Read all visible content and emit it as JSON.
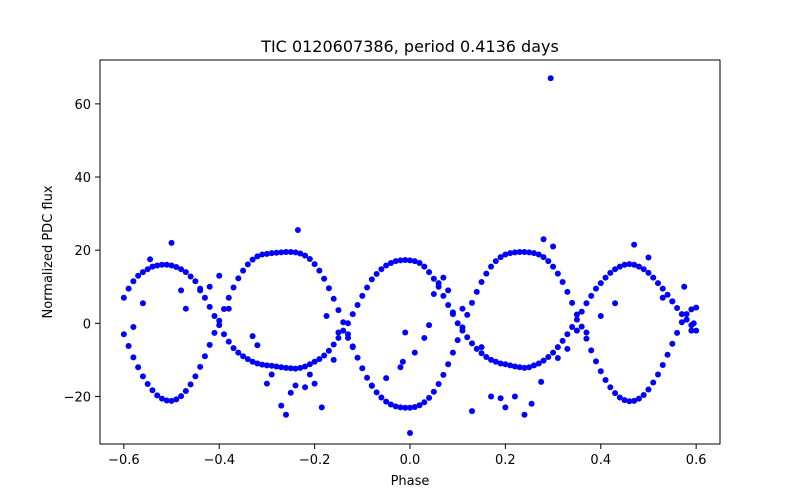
{
  "chart_data": {
    "type": "scatter",
    "title": "TIC 0120607386, period 0.4136 days",
    "xlabel": "Phase",
    "ylabel": "Normalized PDC flux",
    "xlim": [
      -0.65,
      0.65
    ],
    "ylim": [
      -33,
      72
    ],
    "xticks": [
      -0.6,
      -0.4,
      -0.2,
      0.0,
      0.2,
      0.4,
      0.6
    ],
    "xtick_labels": [
      "−0.6",
      "−0.4",
      "−0.2",
      "0.0",
      "0.2",
      "0.4",
      "0.6"
    ],
    "yticks": [
      -20,
      0,
      20,
      40,
      60
    ],
    "ytick_labels": [
      "−20",
      "0",
      "20",
      "40",
      "60"
    ],
    "grid": false,
    "marker_color": "#0000ff",
    "series": [
      {
        "points": [
          [
            -0.6,
            -3.0
          ],
          [
            -0.59,
            -6.2
          ],
          [
            -0.58,
            -9.3
          ],
          [
            -0.57,
            -12.0
          ],
          [
            -0.56,
            -14.5
          ],
          [
            -0.55,
            -16.6
          ],
          [
            -0.54,
            -18.3
          ],
          [
            -0.53,
            -19.7
          ],
          [
            -0.52,
            -20.6
          ],
          [
            -0.51,
            -21.1
          ],
          [
            -0.5,
            -21.2
          ],
          [
            -0.49,
            -20.8
          ],
          [
            -0.48,
            -19.9
          ],
          [
            -0.47,
            -18.5
          ],
          [
            -0.46,
            -16.7
          ],
          [
            -0.45,
            -14.5
          ],
          [
            -0.44,
            -11.9
          ],
          [
            -0.43,
            -9.0
          ],
          [
            -0.42,
            -5.9
          ],
          [
            -0.41,
            -2.6
          ],
          [
            -0.4,
            0.7
          ],
          [
            -0.39,
            3.9
          ],
          [
            -0.38,
            7.0
          ],
          [
            -0.37,
            9.8
          ],
          [
            -0.36,
            12.3
          ],
          [
            -0.35,
            14.4
          ],
          [
            -0.34,
            16.1
          ],
          [
            -0.33,
            17.4
          ],
          [
            -0.32,
            18.3
          ],
          [
            -0.31,
            18.8
          ],
          [
            -0.3,
            19.0
          ],
          [
            -0.29,
            19.2
          ],
          [
            -0.28,
            19.3
          ],
          [
            -0.27,
            19.4
          ],
          [
            -0.26,
            19.5
          ],
          [
            -0.25,
            19.5
          ],
          [
            -0.24,
            19.4
          ],
          [
            -0.23,
            19.1
          ],
          [
            -0.22,
            18.5
          ],
          [
            -0.21,
            17.6
          ],
          [
            -0.2,
            16.2
          ],
          [
            -0.19,
            14.4
          ],
          [
            -0.18,
            12.2
          ],
          [
            -0.17,
            9.6
          ],
          [
            -0.16,
            6.7
          ],
          [
            -0.15,
            3.6
          ],
          [
            -0.14,
            0.3
          ],
          [
            -0.13,
            -3.0
          ],
          [
            -0.12,
            -6.3
          ],
          [
            -0.11,
            -9.4
          ],
          [
            -0.1,
            -12.3
          ],
          [
            -0.09,
            -14.9
          ],
          [
            -0.08,
            -17.1
          ],
          [
            -0.07,
            -18.9
          ],
          [
            -0.06,
            -20.3
          ],
          [
            -0.05,
            -21.4
          ],
          [
            -0.04,
            -22.2
          ],
          [
            -0.03,
            -22.7
          ],
          [
            -0.02,
            -23.0
          ],
          [
            -0.01,
            -23.1
          ],
          [
            0.0,
            -23.1
          ],
          [
            0.01,
            -22.9
          ],
          [
            0.02,
            -22.4
          ],
          [
            0.03,
            -21.6
          ],
          [
            0.04,
            -20.4
          ],
          [
            0.05,
            -18.7
          ],
          [
            0.06,
            -16.6
          ],
          [
            0.07,
            -14.1
          ],
          [
            0.08,
            -11.2
          ],
          [
            0.09,
            -8.0
          ],
          [
            0.1,
            -4.6
          ],
          [
            0.11,
            -1.1
          ],
          [
            0.12,
            2.3
          ],
          [
            0.13,
            5.6
          ],
          [
            0.14,
            8.6
          ],
          [
            0.15,
            11.3
          ],
          [
            0.16,
            13.6
          ],
          [
            0.17,
            15.5
          ],
          [
            0.18,
            17.0
          ],
          [
            0.19,
            18.1
          ],
          [
            0.2,
            18.8
          ],
          [
            0.21,
            19.2
          ],
          [
            0.22,
            19.4
          ],
          [
            0.23,
            19.5
          ],
          [
            0.24,
            19.5
          ],
          [
            0.25,
            19.4
          ],
          [
            0.26,
            19.2
          ],
          [
            0.27,
            18.8
          ],
          [
            0.28,
            18.1
          ],
          [
            0.29,
            17.0
          ],
          [
            0.3,
            15.5
          ],
          [
            0.31,
            13.6
          ],
          [
            0.32,
            11.3
          ],
          [
            0.33,
            8.6
          ],
          [
            0.34,
            5.6
          ],
          [
            0.35,
            2.4
          ],
          [
            0.36,
            -0.9
          ],
          [
            0.37,
            -4.2
          ],
          [
            0.38,
            -7.4
          ],
          [
            0.39,
            -10.4
          ],
          [
            0.4,
            -13.1
          ],
          [
            0.41,
            -15.5
          ],
          [
            0.42,
            -17.5
          ],
          [
            0.43,
            -19.1
          ],
          [
            0.44,
            -20.3
          ],
          [
            0.45,
            -21.0
          ],
          [
            0.46,
            -21.3
          ],
          [
            0.47,
            -21.2
          ],
          [
            0.48,
            -20.6
          ],
          [
            0.49,
            -19.6
          ],
          [
            0.5,
            -18.1
          ],
          [
            0.51,
            -16.2
          ],
          [
            0.52,
            -14.0
          ],
          [
            0.53,
            -11.4
          ],
          [
            0.54,
            -8.6
          ],
          [
            0.55,
            -5.6
          ],
          [
            0.56,
            -2.6
          ],
          [
            0.57,
            0.3
          ],
          [
            0.58,
            2.5
          ],
          [
            0.59,
            3.8
          ],
          [
            0.6,
            4.3
          ],
          [
            -0.6,
            7.0
          ],
          [
            -0.59,
            9.5
          ],
          [
            -0.58,
            11.5
          ],
          [
            -0.57,
            13.0
          ],
          [
            -0.56,
            14.0
          ],
          [
            -0.55,
            14.8
          ],
          [
            -0.54,
            15.5
          ],
          [
            -0.53,
            15.8
          ],
          [
            -0.52,
            16.0
          ],
          [
            -0.51,
            16.0
          ],
          [
            -0.5,
            15.8
          ],
          [
            -0.49,
            15.4
          ],
          [
            -0.48,
            14.8
          ],
          [
            -0.47,
            14.0
          ],
          [
            -0.46,
            12.8
          ],
          [
            -0.45,
            11.5
          ],
          [
            -0.44,
            9.5
          ],
          [
            -0.43,
            7.0
          ],
          [
            -0.42,
            4.5
          ],
          [
            -0.41,
            2.0
          ],
          [
            -0.4,
            -0.5
          ],
          [
            -0.39,
            -3.0
          ],
          [
            -0.38,
            -5.0
          ],
          [
            -0.37,
            -6.8
          ],
          [
            -0.36,
            -8.0
          ],
          [
            -0.35,
            -9.0
          ],
          [
            -0.34,
            -9.8
          ],
          [
            -0.33,
            -10.5
          ],
          [
            -0.32,
            -11.0
          ],
          [
            -0.31,
            -11.3
          ],
          [
            -0.3,
            -11.5
          ],
          [
            -0.29,
            -11.6
          ],
          [
            -0.28,
            -11.8
          ],
          [
            -0.27,
            -12.0
          ],
          [
            -0.26,
            -12.2
          ],
          [
            -0.25,
            -12.3
          ],
          [
            -0.24,
            -12.4
          ],
          [
            -0.23,
            -12.2
          ],
          [
            -0.22,
            -11.8
          ],
          [
            -0.21,
            -11.2
          ],
          [
            -0.2,
            -10.5
          ],
          [
            -0.19,
            -9.8
          ],
          [
            -0.18,
            -8.8
          ],
          [
            -0.17,
            -7.5
          ],
          [
            -0.16,
            -5.8
          ],
          [
            -0.15,
            -4.0
          ],
          [
            -0.14,
            -2.0
          ],
          [
            -0.13,
            0.0
          ],
          [
            -0.12,
            2.5
          ],
          [
            -0.11,
            5.0
          ],
          [
            -0.1,
            7.5
          ],
          [
            -0.09,
            9.8
          ],
          [
            -0.08,
            12.0
          ],
          [
            -0.07,
            13.5
          ],
          [
            -0.06,
            14.8
          ],
          [
            -0.05,
            15.8
          ],
          [
            -0.04,
            16.5
          ],
          [
            -0.03,
            17.0
          ],
          [
            -0.02,
            17.2
          ],
          [
            -0.01,
            17.3
          ],
          [
            0.0,
            17.2
          ],
          [
            0.01,
            17.0
          ],
          [
            0.02,
            16.5
          ],
          [
            0.03,
            15.5
          ],
          [
            0.04,
            14.0
          ],
          [
            0.05,
            12.2
          ],
          [
            0.06,
            10.0
          ],
          [
            0.07,
            7.5
          ],
          [
            0.08,
            5.0
          ],
          [
            0.09,
            2.5
          ],
          [
            0.1,
            0.0
          ],
          [
            0.11,
            -2.0
          ],
          [
            0.12,
            -3.8
          ],
          [
            0.13,
            -5.5
          ],
          [
            0.14,
            -7.0
          ],
          [
            0.15,
            -8.2
          ],
          [
            0.16,
            -9.2
          ],
          [
            0.17,
            -10.0
          ],
          [
            0.18,
            -10.5
          ],
          [
            0.19,
            -11.0
          ],
          [
            0.2,
            -11.2
          ],
          [
            0.21,
            -11.5
          ],
          [
            0.22,
            -11.8
          ],
          [
            0.23,
            -12.0
          ],
          [
            0.24,
            -12.2
          ],
          [
            0.25,
            -12.0
          ],
          [
            0.26,
            -11.5
          ],
          [
            0.27,
            -11.0
          ],
          [
            0.28,
            -10.2
          ],
          [
            0.29,
            -9.2
          ],
          [
            0.3,
            -8.0
          ],
          [
            0.31,
            -6.5
          ],
          [
            0.32,
            -4.8
          ],
          [
            0.33,
            -3.0
          ],
          [
            0.34,
            -1.0
          ],
          [
            0.35,
            1.0
          ],
          [
            0.36,
            3.2
          ],
          [
            0.37,
            5.5
          ],
          [
            0.38,
            7.5
          ],
          [
            0.39,
            9.5
          ],
          [
            0.4,
            11.0
          ],
          [
            0.41,
            12.5
          ],
          [
            0.42,
            13.8
          ],
          [
            0.43,
            14.8
          ],
          [
            0.44,
            15.5
          ],
          [
            0.45,
            16.0
          ],
          [
            0.46,
            16.2
          ],
          [
            0.47,
            16.0
          ],
          [
            0.48,
            15.5
          ],
          [
            0.49,
            14.8
          ],
          [
            0.5,
            13.8
          ],
          [
            0.51,
            12.5
          ],
          [
            0.52,
            11.0
          ],
          [
            0.53,
            9.5
          ],
          [
            0.54,
            7.8
          ],
          [
            0.55,
            6.0
          ],
          [
            0.56,
            4.2
          ],
          [
            0.57,
            2.5
          ],
          [
            0.58,
            1.0
          ],
          [
            0.59,
            -0.5
          ],
          [
            0.6,
            -2.0
          ],
          [
            -0.58,
            -1.0
          ],
          [
            -0.56,
            5.5
          ],
          [
            -0.545,
            17.5
          ],
          [
            -0.5,
            22.0
          ],
          [
            -0.48,
            9.0
          ],
          [
            -0.47,
            4.0
          ],
          [
            -0.44,
            9.0
          ],
          [
            -0.42,
            10.0
          ],
          [
            -0.4,
            13.0
          ],
          [
            -0.38,
            4.0
          ],
          [
            -0.33,
            -3.5
          ],
          [
            -0.32,
            -6.0
          ],
          [
            -0.3,
            -16.5
          ],
          [
            -0.29,
            -14.0
          ],
          [
            -0.27,
            -22.5
          ],
          [
            -0.26,
            -25.0
          ],
          [
            -0.25,
            -19.0
          ],
          [
            -0.24,
            -17.0
          ],
          [
            -0.235,
            25.5
          ],
          [
            -0.22,
            -17.5
          ],
          [
            -0.21,
            -14.0
          ],
          [
            -0.2,
            -16.5
          ],
          [
            -0.185,
            -23.0
          ],
          [
            -0.175,
            2.0
          ],
          [
            -0.16,
            -10.0
          ],
          [
            -0.15,
            -2.5
          ],
          [
            -0.13,
            -4.0
          ],
          [
            -0.12,
            -6.5
          ],
          [
            -0.08,
            -17.0
          ],
          [
            -0.05,
            -15.0
          ],
          [
            -0.02,
            -12.0
          ],
          [
            -0.015,
            -10.5
          ],
          [
            -0.01,
            -2.5
          ],
          [
            0.0,
            -30.0
          ],
          [
            0.01,
            -8.0
          ],
          [
            0.03,
            -4.0
          ],
          [
            0.04,
            -0.5
          ],
          [
            0.05,
            8.0
          ],
          [
            0.06,
            11.0
          ],
          [
            0.07,
            12.5
          ],
          [
            0.08,
            9.0
          ],
          [
            0.09,
            3.0
          ],
          [
            0.11,
            4.0
          ],
          [
            0.13,
            -24.0
          ],
          [
            0.15,
            -6.5
          ],
          [
            0.17,
            -20.0
          ],
          [
            0.19,
            -20.5
          ],
          [
            0.2,
            -23.0
          ],
          [
            0.22,
            -20.0
          ],
          [
            0.24,
            -25.0
          ],
          [
            0.255,
            -22.0
          ],
          [
            0.275,
            -16.0
          ],
          [
            0.28,
            23.0
          ],
          [
            0.3,
            21.0
          ],
          [
            0.31,
            -9.5
          ],
          [
            0.33,
            -7.0
          ],
          [
            0.35,
            -2.0
          ],
          [
            0.37,
            -2.5
          ],
          [
            0.4,
            2.0
          ],
          [
            0.43,
            5.5
          ],
          [
            0.47,
            21.5
          ],
          [
            0.5,
            18.0
          ],
          [
            0.53,
            7.0
          ],
          [
            0.55,
            6.0
          ],
          [
            0.575,
            10.0
          ],
          [
            0.59,
            -2.0
          ],
          [
            0.595,
            0.0
          ],
          [
            0.295,
            67.0
          ]
        ]
      }
    ]
  }
}
